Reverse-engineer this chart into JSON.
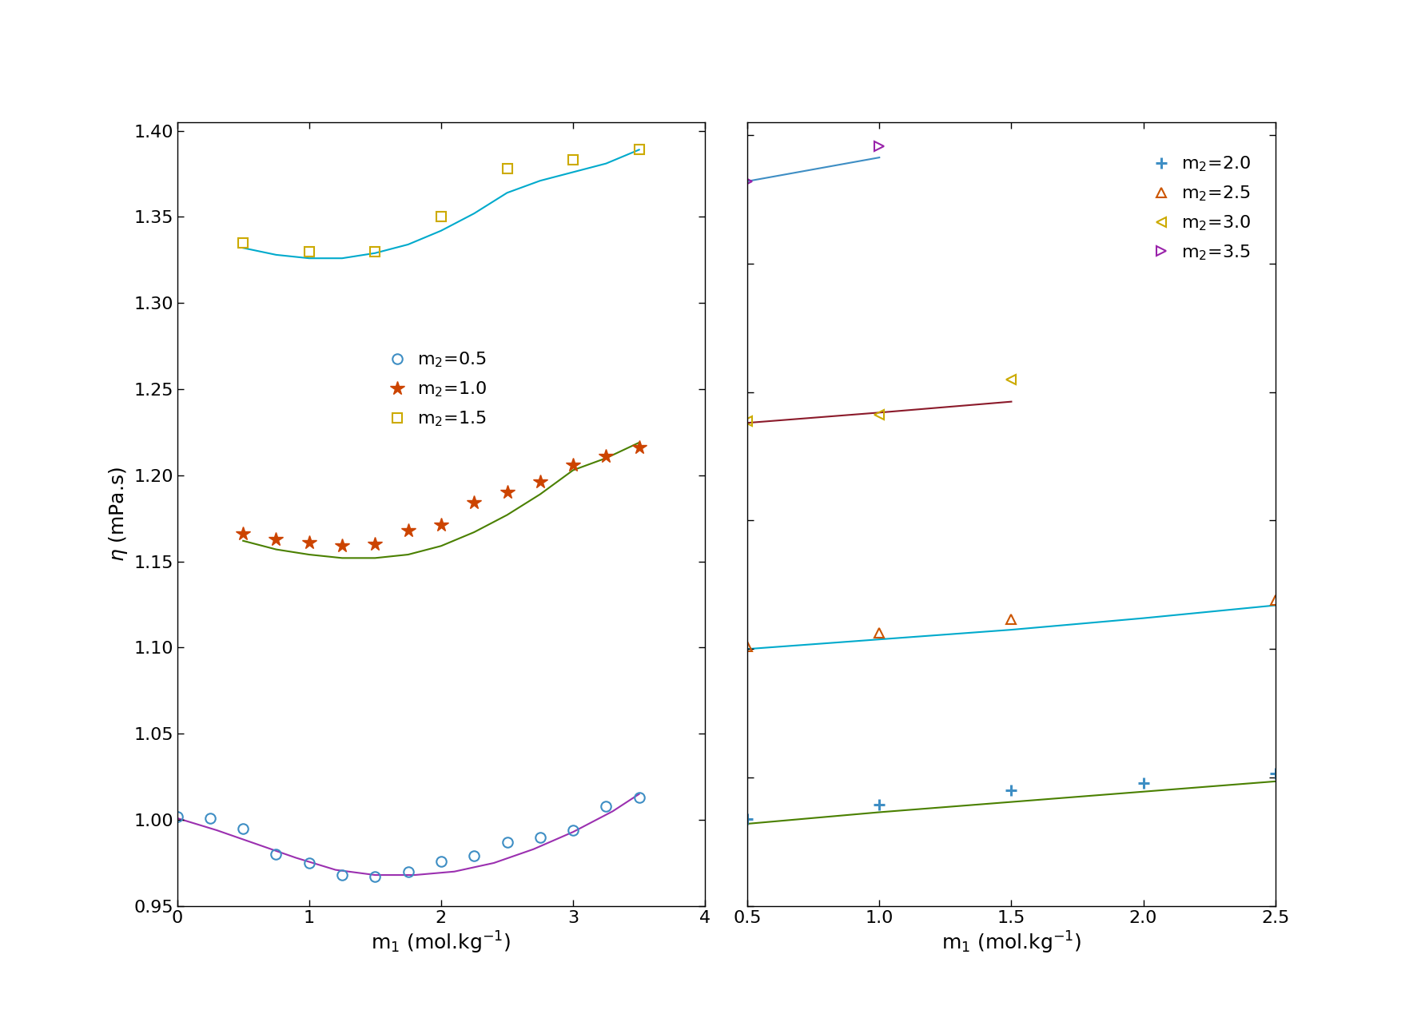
{
  "left_panel": {
    "xlim": [
      0,
      4
    ],
    "ylim": [
      0.95,
      1.405
    ],
    "yticks": [
      0.95,
      1.0,
      1.05,
      1.1,
      1.15,
      1.2,
      1.25,
      1.3,
      1.35,
      1.4
    ],
    "xticks": [
      0,
      1,
      2,
      3,
      4
    ],
    "series": [
      {
        "label": "m$_2$=0.5",
        "marker": "o",
        "marker_color": "#3e8ec4",
        "marker_facecolor": "none",
        "line_color": "#9b30b0",
        "scatter_x": [
          0.0,
          0.25,
          0.5,
          0.75,
          1.0,
          1.25,
          1.5,
          1.75,
          2.0,
          2.25,
          2.5,
          2.75,
          3.0,
          3.25,
          3.5
        ],
        "scatter_y": [
          1.002,
          1.001,
          0.995,
          0.98,
          0.975,
          0.968,
          0.967,
          0.97,
          0.976,
          0.979,
          0.987,
          0.99,
          0.994,
          1.008,
          1.013
        ],
        "line_x": [
          0.0,
          0.3,
          0.6,
          0.9,
          1.2,
          1.5,
          1.8,
          2.1,
          2.4,
          2.7,
          3.0,
          3.3,
          3.5
        ],
        "line_y": [
          1.001,
          0.994,
          0.986,
          0.978,
          0.971,
          0.968,
          0.968,
          0.97,
          0.975,
          0.983,
          0.993,
          1.005,
          1.015
        ]
      },
      {
        "label": "m$_2$=1.0",
        "marker": "*",
        "marker_color": "#cc4400",
        "marker_facecolor": "#cc4400",
        "line_color": "#4a8000",
        "scatter_x": [
          0.5,
          0.75,
          1.0,
          1.25,
          1.5,
          1.75,
          2.0,
          2.25,
          2.5,
          2.75,
          3.0,
          3.25,
          3.5
        ],
        "scatter_y": [
          1.166,
          1.163,
          1.161,
          1.159,
          1.16,
          1.168,
          1.171,
          1.184,
          1.19,
          1.196,
          1.206,
          1.211,
          1.216
        ],
        "line_x": [
          0.5,
          0.75,
          1.0,
          1.25,
          1.5,
          1.75,
          2.0,
          2.25,
          2.5,
          2.75,
          3.0,
          3.25,
          3.5
        ],
        "line_y": [
          1.162,
          1.157,
          1.154,
          1.152,
          1.152,
          1.154,
          1.159,
          1.167,
          1.177,
          1.189,
          1.203,
          1.21,
          1.219
        ]
      },
      {
        "label": "m$_2$=1.5",
        "marker": "s",
        "marker_color": "#ccaa00",
        "marker_facecolor": "none",
        "line_color": "#00aacc",
        "scatter_x": [
          0.5,
          1.0,
          1.5,
          2.0,
          2.5,
          3.0,
          3.5
        ],
        "scatter_y": [
          1.335,
          1.33,
          1.33,
          1.35,
          1.378,
          1.383,
          1.389
        ],
        "line_x": [
          0.5,
          0.75,
          1.0,
          1.25,
          1.5,
          1.75,
          2.0,
          2.25,
          2.5,
          2.75,
          3.0,
          3.25,
          3.5
        ],
        "line_y": [
          1.332,
          1.328,
          1.326,
          1.326,
          1.329,
          1.334,
          1.342,
          1.352,
          1.364,
          1.371,
          1.376,
          1.381,
          1.389
        ]
      }
    ]
  },
  "right_panel": {
    "xlim": [
      0.5,
      2.5
    ],
    "ylim": [
      1.4,
      2.62
    ],
    "yticks": [
      1.4,
      1.6,
      1.8,
      2.0,
      2.2,
      2.4,
      2.6
    ],
    "xticks": [
      0.5,
      1.0,
      1.5,
      2.0,
      2.5
    ],
    "series": [
      {
        "label": "m$_2$=2.0",
        "marker": "+",
        "marker_color": "#3e8ec4",
        "marker_facecolor": "#3e8ec4",
        "line_color": "#4a8000",
        "scatter_x": [
          0.5,
          1.0,
          1.5,
          2.0,
          2.5
        ],
        "scatter_y": [
          1.535,
          1.558,
          1.58,
          1.591,
          1.606
        ],
        "line_x": [
          0.5,
          1.0,
          1.5,
          2.0,
          2.5
        ],
        "line_y": [
          1.528,
          1.546,
          1.562,
          1.578,
          1.594
        ]
      },
      {
        "label": "m$_2$=2.5",
        "marker": "^",
        "marker_color": "#cc5500",
        "marker_facecolor": "none",
        "line_color": "#00aacc",
        "scatter_x": [
          0.5,
          1.0,
          1.5,
          2.5
        ],
        "scatter_y": [
          1.804,
          1.825,
          1.846,
          1.876
        ],
        "line_x": [
          0.5,
          1.0,
          1.5,
          2.0,
          2.5
        ],
        "line_y": [
          1.8,
          1.815,
          1.83,
          1.848,
          1.868
        ]
      },
      {
        "label": "m$_2$=3.0",
        "marker": "<",
        "marker_color": "#ccaa00",
        "marker_facecolor": "none",
        "line_color": "#8b1a2a",
        "scatter_x": [
          0.5,
          1.0,
          1.5
        ],
        "scatter_y": [
          2.155,
          2.165,
          2.22
        ],
        "line_x": [
          0.5,
          1.0,
          1.5
        ],
        "line_y": [
          2.152,
          2.168,
          2.185
        ]
      },
      {
        "label": "m$_2$=3.5",
        "marker": ">",
        "marker_color": "#9922aa",
        "marker_facecolor": "none",
        "line_color": "#3e8ec4",
        "scatter_x": [
          0.5,
          1.0
        ],
        "scatter_y": [
          2.528,
          2.583
        ],
        "line_x": [
          0.5,
          1.0
        ],
        "line_y": [
          2.528,
          2.565
        ]
      }
    ]
  },
  "xlabel": "m$_1$ (mol.kg$^{-1}$)",
  "ylabel": "$\\eta$ (mPa.s)",
  "background_color": "#ffffff",
  "label_fontsize": 18,
  "tick_fontsize": 16,
  "legend_fontsize": 16,
  "marker_size": 9,
  "star_size": 13,
  "line_width": 1.5
}
